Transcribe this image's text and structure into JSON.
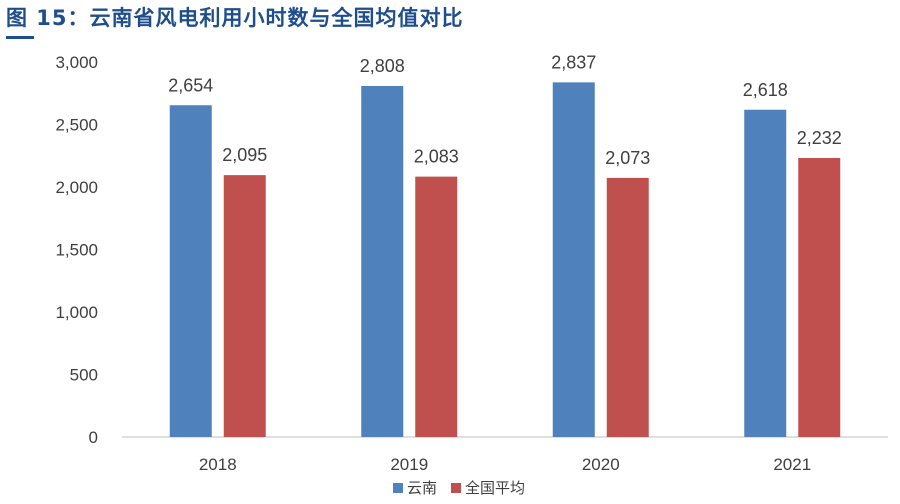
{
  "figure_title": "图 15：云南省风电利用小时数与全国均值对比",
  "chart_data": {
    "type": "bar",
    "categories": [
      "2018",
      "2019",
      "2020",
      "2021"
    ],
    "series": [
      {
        "name": "云南",
        "values": [
          2654,
          2808,
          2837,
          2618
        ],
        "labels": [
          "2,654",
          "2,808",
          "2,837",
          "2,618"
        ],
        "color": "#4f81bd"
      },
      {
        "name": "全国平均",
        "values": [
          2095,
          2083,
          2073,
          2232
        ],
        "labels": [
          "2,095",
          "2,083",
          "2,073",
          "2,232"
        ],
        "color": "#c0504d"
      }
    ],
    "ylim": [
      0,
      3000
    ],
    "yticks": [
      0,
      500,
      1000,
      1500,
      2000,
      2500,
      3000
    ],
    "ytick_labels": [
      "0",
      "500",
      "1,000",
      "1,500",
      "2,000",
      "2,500",
      "3,000"
    ],
    "grid": false,
    "legend": "bottom-center"
  }
}
